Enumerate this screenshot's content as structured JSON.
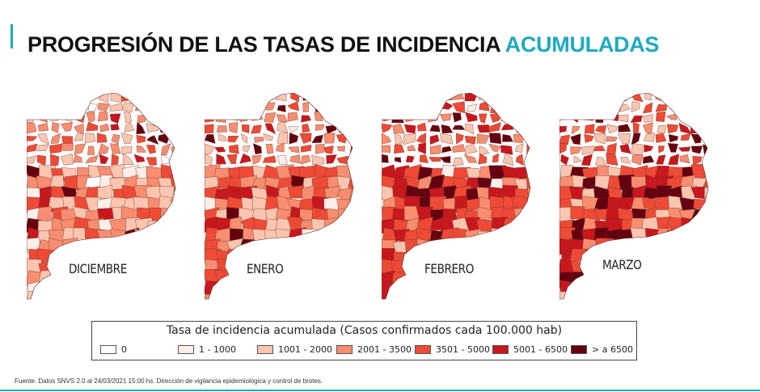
{
  "title": {
    "main": "PROGRESIÓN DE LAS TASAS DE INCIDENCIA ",
    "highlight": "ACUMULADAS",
    "accent_color": "#1fa9c0"
  },
  "maps": [
    {
      "label": "DICIEMBRE"
    },
    {
      "label": "ENERO"
    },
    {
      "label": "FEBRERO"
    },
    {
      "label": "MARZO"
    }
  ],
  "legend": {
    "title": "Tasa de incidencia acumulada (Casos confirmados cada 100.000 hab)",
    "items": [
      {
        "label": "0",
        "color": "#ffffff"
      },
      {
        "label": "1 - 1000",
        "color": "#fdeee9"
      },
      {
        "label": "1001 - 2000",
        "color": "#fcc5af"
      },
      {
        "label": "2001 - 3500",
        "color": "#f88d6f"
      },
      {
        "label": "3501 - 5000",
        "color": "#ee4a35"
      },
      {
        "label": "5001 - 6500",
        "color": "#c8171d"
      },
      {
        "label": "> a 6500",
        "color": "#650010"
      }
    ]
  },
  "footer": "Fuente. Datos SNVS 2.0 al 24/03/2021 15:00 hs. Dirección de vigilancia epidemiológica y control de brotes."
}
